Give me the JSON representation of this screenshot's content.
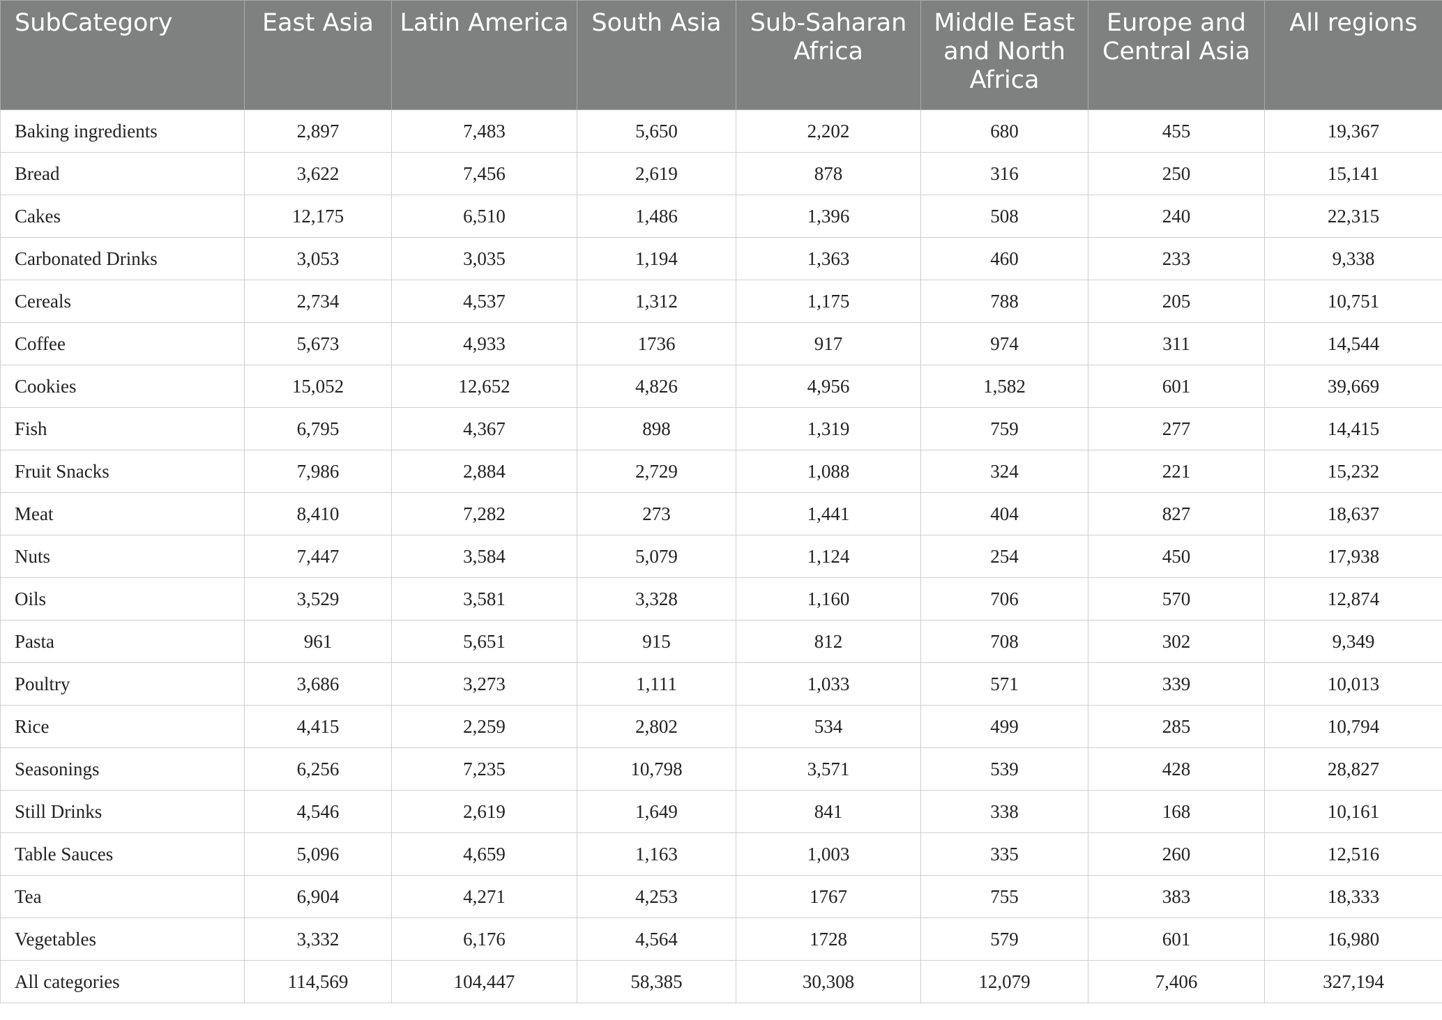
{
  "table": {
    "header": [
      "SubCategory",
      "East Asia",
      "Latin America",
      "South Asia",
      "Sub-Saharan Africa",
      "Middle East and North Africa",
      "Europe and Central Asia",
      "All regions"
    ],
    "rows": [
      [
        "Baking ingredients",
        "2,897",
        "7,483",
        "5,650",
        "2,202",
        "680",
        "455",
        "19,367"
      ],
      [
        "Bread",
        "3,622",
        "7,456",
        "2,619",
        "878",
        "316",
        "250",
        "15,141"
      ],
      [
        "Cakes",
        "12,175",
        "6,510",
        "1,486",
        "1,396",
        "508",
        "240",
        "22,315"
      ],
      [
        "Carbonated Drinks",
        "3,053",
        "3,035",
        "1,194",
        "1,363",
        "460",
        "233",
        "9,338"
      ],
      [
        "Cereals",
        "2,734",
        "4,537",
        "1,312",
        "1,175",
        "788",
        "205",
        "10,751"
      ],
      [
        "Coffee",
        "5,673",
        "4,933",
        "1736",
        "917",
        "974",
        "311",
        "14,544"
      ],
      [
        "Cookies",
        "15,052",
        "12,652",
        "4,826",
        "4,956",
        "1,582",
        "601",
        "39,669"
      ],
      [
        "Fish",
        "6,795",
        "4,367",
        "898",
        "1,319",
        "759",
        "277",
        "14,415"
      ],
      [
        "Fruit Snacks",
        "7,986",
        "2,884",
        "2,729",
        "1,088",
        "324",
        "221",
        "15,232"
      ],
      [
        "Meat",
        "8,410",
        "7,282",
        "273",
        "1,441",
        "404",
        "827",
        "18,637"
      ],
      [
        "Nuts",
        "7,447",
        "3,584",
        "5,079",
        "1,124",
        "254",
        "450",
        "17,938"
      ],
      [
        "Oils",
        "3,529",
        "3,581",
        "3,328",
        "1,160",
        "706",
        "570",
        "12,874"
      ],
      [
        "Pasta",
        "961",
        "5,651",
        "915",
        "812",
        "708",
        "302",
        "9,349"
      ],
      [
        "Poultry",
        "3,686",
        "3,273",
        "1,111",
        "1,033",
        "571",
        "339",
        "10,013"
      ],
      [
        "Rice",
        "4,415",
        "2,259",
        "2,802",
        "534",
        "499",
        "285",
        "10,794"
      ],
      [
        "Seasonings",
        "6,256",
        "7,235",
        "10,798",
        "3,571",
        "539",
        "428",
        "28,827"
      ],
      [
        "Still Drinks",
        "4,546",
        "2,619",
        "1,649",
        "841",
        "338",
        "168",
        "10,161"
      ],
      [
        "Table Sauces",
        "5,096",
        "4,659",
        "1,163",
        "1,003",
        "335",
        "260",
        "12,516"
      ],
      [
        "Tea",
        "6,904",
        "4,271",
        "4,253",
        "1767",
        "755",
        "383",
        "18,333"
      ],
      [
        "Vegetables",
        "3,332",
        "6,176",
        "4,564",
        "1728",
        "579",
        "601",
        "16,980"
      ],
      [
        "All categories",
        "114,569",
        "104,447",
        "58,385",
        "30,308",
        "12,079",
        "7,406",
        "327,194"
      ]
    ]
  }
}
